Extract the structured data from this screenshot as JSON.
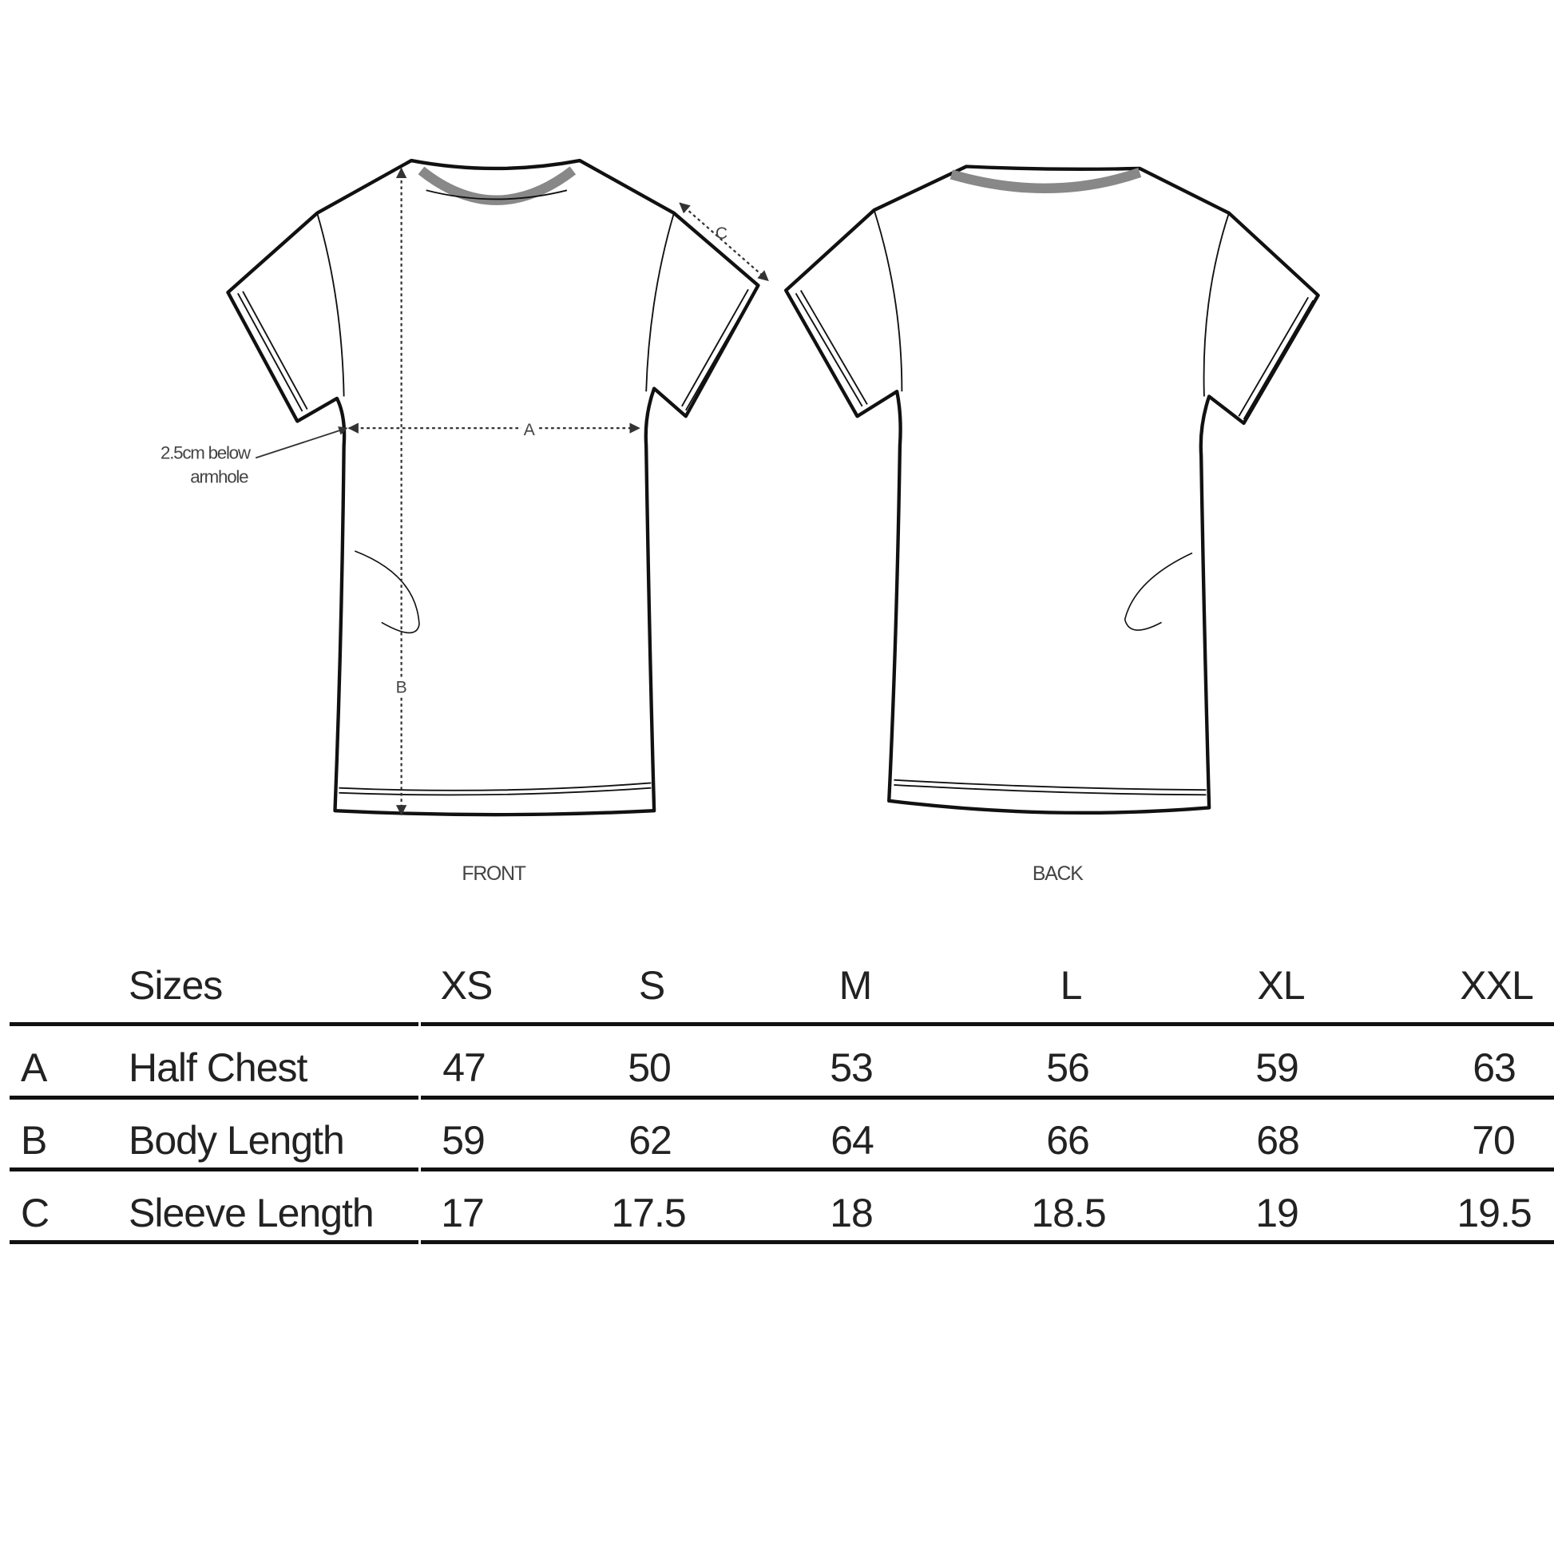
{
  "diagram": {
    "front_label": "FRONT",
    "back_label": "BACK",
    "note_line1": "2.5cm below",
    "note_line2": "armhole",
    "marker_a": "A",
    "marker_b": "B",
    "marker_c": "C"
  },
  "table": {
    "header": {
      "label": "Sizes",
      "sizes": [
        "XS",
        "S",
        "M",
        "L",
        "XL",
        "XXL"
      ]
    },
    "rows": [
      {
        "key": "A",
        "label": "Half Chest",
        "values": [
          "47",
          "50",
          "53",
          "56",
          "59",
          "63"
        ]
      },
      {
        "key": "B",
        "label": "Body Length",
        "values": [
          "59",
          "62",
          "64",
          "66",
          "68",
          "70"
        ]
      },
      {
        "key": "C",
        "label": "Sleeve Length",
        "values": [
          "17",
          "17.5",
          "18",
          "18.5",
          "19",
          "19.5"
        ]
      }
    ]
  }
}
